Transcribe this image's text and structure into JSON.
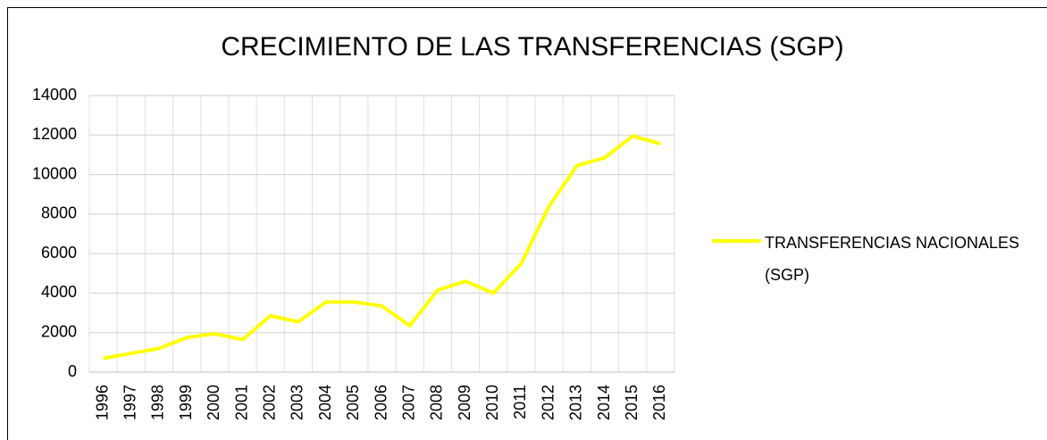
{
  "chart_data": {
    "type": "line",
    "title": "CRECIMIENTO DE LAS TRANSFERENCIAS  (SGP)",
    "categories": [
      "1996",
      "1997",
      "1998",
      "1999",
      "2000",
      "2001",
      "2002",
      "2003",
      "2004",
      "2005",
      "2006",
      "2007",
      "2008",
      "2009",
      "2010",
      "2011",
      "2012",
      "2013",
      "2014",
      "2015",
      "2016"
    ],
    "series": [
      {
        "name": "TRANSFERENCIAS NACIONALES (SGP)",
        "color": "#ffff00",
        "values": [
          700,
          950,
          1200,
          1750,
          1950,
          1650,
          2850,
          2550,
          3550,
          3550,
          3350,
          2350,
          4150,
          4600,
          4000,
          5500,
          8400,
          10450,
          10850,
          11950,
          11550
        ]
      }
    ],
    "ylim": [
      0,
      14000
    ],
    "yticks": [
      0,
      2000,
      4000,
      6000,
      8000,
      10000,
      12000,
      14000
    ],
    "grid": true,
    "legend": "right"
  }
}
